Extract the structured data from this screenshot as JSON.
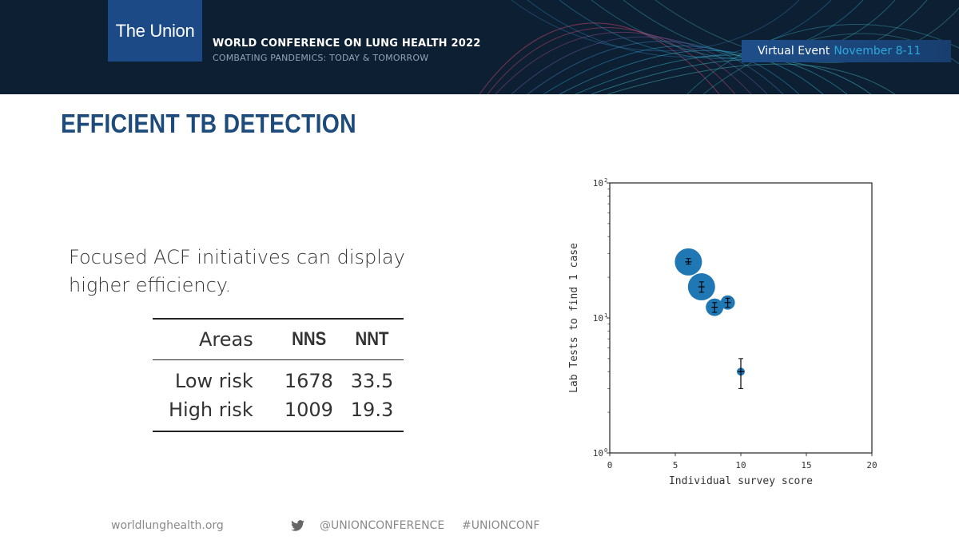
{
  "banner": {
    "logo_text": "The Union",
    "conference_title": "WORLD CONFERENCE ON LUNG HEALTH 2022",
    "conference_subtitle": "COMBATING PANDEMICS: TODAY & TOMORROW",
    "event_label": "Virtual Event",
    "event_dates": "November 8-11",
    "colors": {
      "background": "#0c1f33",
      "logo_box": "#1c4a86",
      "accent": "#2ea8dc"
    }
  },
  "slide": {
    "title": "EFFICIENT TB DETECTION",
    "body_text": "Focused ACF initiatives can display higher efficiency."
  },
  "table": {
    "headers": [
      "Areas",
      "NNS",
      "NNT"
    ],
    "rows": [
      [
        "Low risk",
        "1678",
        "33.5"
      ],
      [
        "High risk",
        "1009",
        "19.3"
      ]
    ]
  },
  "chart_data": {
    "type": "scatter",
    "xlabel": "Individual survey score",
    "ylabel": "Lab Tests to find 1 case",
    "xlim": [
      0,
      20
    ],
    "ylim": [
      1,
      100
    ],
    "y_scale": "log",
    "x_ticks": [
      "0",
      "5",
      "10",
      "15",
      "20"
    ],
    "y_ticks": [
      {
        "base": "10",
        "exp": "0"
      },
      {
        "base": "10",
        "exp": "1"
      },
      {
        "base": "10",
        "exp": "2"
      }
    ],
    "color": "#1f77b4",
    "points": [
      {
        "x": 6,
        "y": 26,
        "size": 17,
        "err_low": 25,
        "err_high": 27.5
      },
      {
        "x": 7,
        "y": 17,
        "size": 17,
        "err_low": 15.5,
        "err_high": 18.5
      },
      {
        "x": 8,
        "y": 12,
        "size": 11,
        "err_low": 11,
        "err_high": 13
      },
      {
        "x": 9,
        "y": 13,
        "size": 9,
        "err_low": 12,
        "err_high": 14
      },
      {
        "x": 10,
        "y": 4,
        "size": 5,
        "err_low": 3,
        "err_high": 5
      }
    ]
  },
  "footer": {
    "website": "worldlunghealth.org",
    "twitter_handle": "@UNIONCONFERENCE",
    "hashtag": "#UNIONCONF"
  }
}
